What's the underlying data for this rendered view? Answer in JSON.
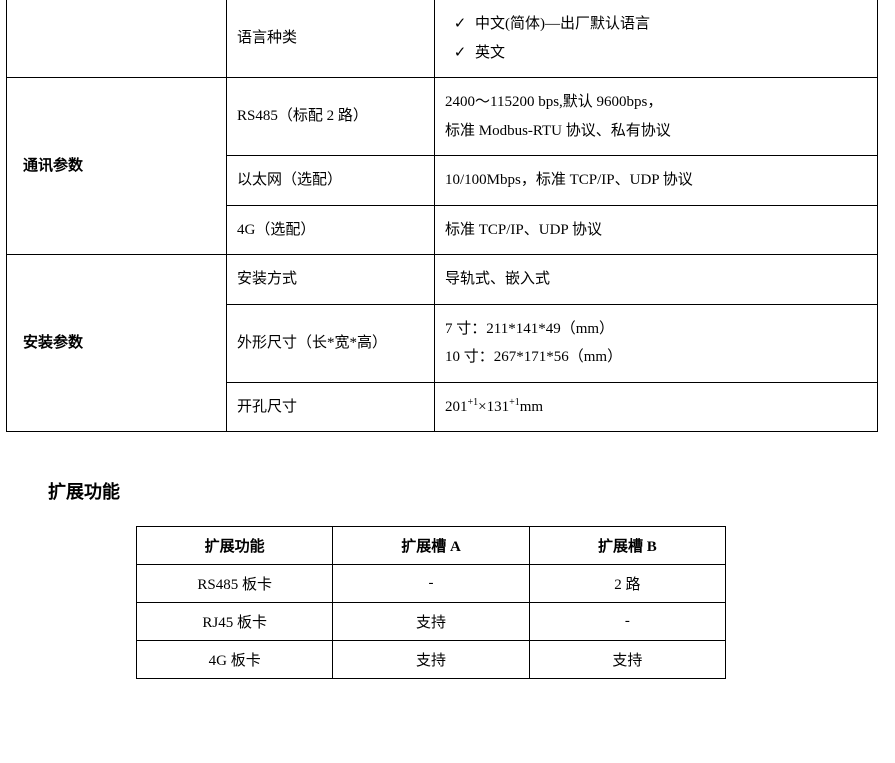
{
  "specs": {
    "row_lang": {
      "param": "语言种类",
      "val1": "中文(简体)—出厂默认语言",
      "val2": "英文"
    },
    "cat_comm": "通讯参数",
    "row_rs485": {
      "param": "RS485（标配 2 路）",
      "val1": "2400～115200 bps,默认 9600bps，",
      "val2": "标准 Modbus-RTU 协议、私有协议"
    },
    "row_eth": {
      "param": "以太网（选配）",
      "val": "10/100Mbps，标准 TCP/IP、UDP 协议"
    },
    "row_4g": {
      "param": "4G（选配）",
      "val": "标准 TCP/IP、UDP 协议"
    },
    "cat_install": "安装参数",
    "row_mount": {
      "param": "安装方式",
      "val": "导轨式、嵌入式"
    },
    "row_dim": {
      "param": "外形尺寸（长*宽*高）",
      "val1": "7 寸：211*141*49（mm）",
      "val2": "10 寸：267*171*56（mm）"
    },
    "row_cut": {
      "param": "开孔尺寸",
      "val_a": "201",
      "val_b": "×131",
      "val_c": "mm",
      "sup": "+1"
    }
  },
  "section_title": "扩展功能",
  "ext": {
    "headers": {
      "c0": "扩展功能",
      "c1": "扩展槽 A",
      "c2": "扩展槽 B"
    },
    "rows": [
      {
        "c0": "RS485 板卡",
        "c1": "-",
        "c2": "2 路"
      },
      {
        "c0": "RJ45 板卡",
        "c1": "支持",
        "c2": "-"
      },
      {
        "c0": "4G 板卡",
        "c1": "支持",
        "c2": "支持"
      }
    ]
  }
}
